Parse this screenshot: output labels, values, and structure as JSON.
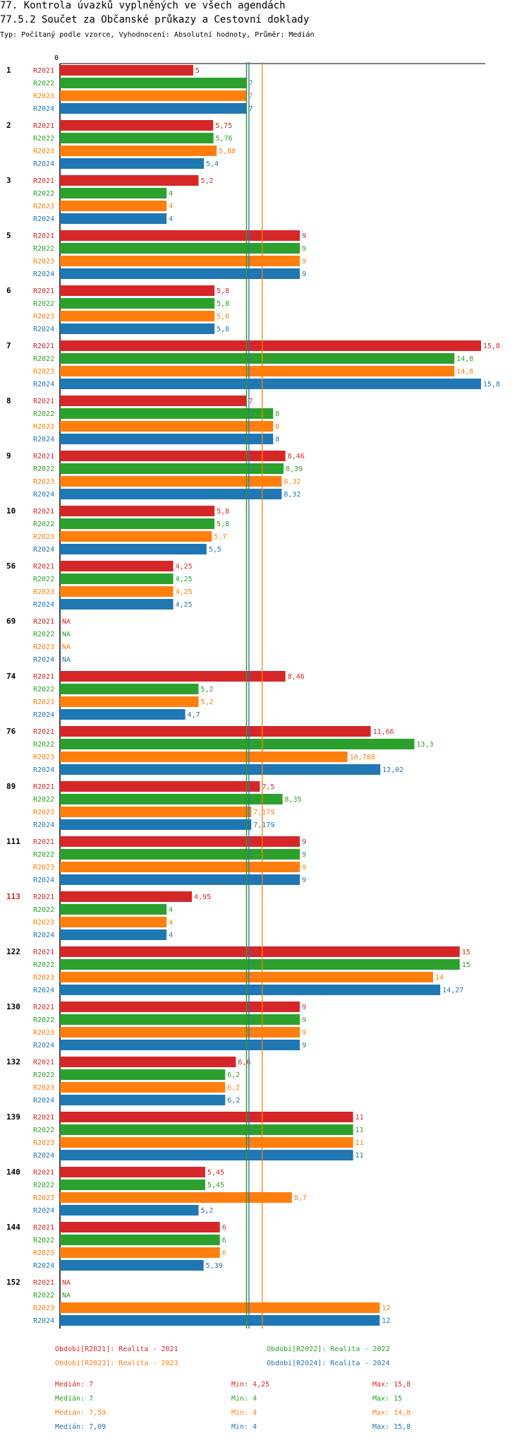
{
  "header": {
    "title": "77. Kontrola úvazků vyplněných ve všech agendách",
    "subtitle": "77.5.2 Součet za Občanské průkazy a Cestovní doklady",
    "description": "Typ: Počítaný podle vzorce, Vyhodnocení: Absolutní hodnoty, Průměr: Medián"
  },
  "colors": {
    "R2021": "#d62728",
    "R2022": "#2ca02c",
    "R2023": "#ff7f0e",
    "R2024": "#1f77b4",
    "highlight": "#d62728"
  },
  "chart_data": {
    "type": "bar",
    "orientation": "horizontal",
    "xlim": [
      0,
      15.8
    ],
    "x_tick_labels": [
      "0"
    ],
    "series_names": [
      "R2021",
      "R2022",
      "R2023",
      "R2024"
    ],
    "median_lines": {
      "R2021": 7,
      "R2022": 7,
      "R2023": 7.59,
      "R2024": 7.09
    },
    "groups": [
      {
        "label": "1",
        "highlight": false,
        "values": [
          5,
          7,
          7,
          7
        ],
        "labels": [
          "5",
          "7",
          "7",
          "7"
        ]
      },
      {
        "label": "2",
        "highlight": false,
        "values": [
          5.75,
          5.76,
          5.88,
          5.4
        ],
        "labels": [
          "5,75",
          "5,76",
          "5,88",
          "5,4"
        ]
      },
      {
        "label": "3",
        "highlight": false,
        "values": [
          5.2,
          4,
          4,
          4
        ],
        "labels": [
          "5,2",
          "4",
          "4",
          "4"
        ]
      },
      {
        "label": "5",
        "highlight": false,
        "values": [
          9,
          9,
          9,
          9
        ],
        "labels": [
          "9",
          "9",
          "9",
          "9"
        ]
      },
      {
        "label": "6",
        "highlight": false,
        "values": [
          5.8,
          5.8,
          5.8,
          5.8
        ],
        "labels": [
          "5,8",
          "5,8",
          "5,8",
          "5,8"
        ]
      },
      {
        "label": "7",
        "highlight": false,
        "values": [
          15.8,
          14.8,
          14.8,
          15.8
        ],
        "labels": [
          "15,8",
          "14,8",
          "14,8",
          "15,8"
        ]
      },
      {
        "label": "8",
        "highlight": false,
        "values": [
          7,
          8,
          8,
          8
        ],
        "labels": [
          "7",
          "8",
          "8",
          "8"
        ]
      },
      {
        "label": "9",
        "highlight": false,
        "values": [
          8.46,
          8.39,
          8.32,
          8.32
        ],
        "labels": [
          "8,46",
          "8,39",
          "8,32",
          "8,32"
        ]
      },
      {
        "label": "10",
        "highlight": false,
        "values": [
          5.8,
          5.8,
          5.7,
          5.5
        ],
        "labels": [
          "5,8",
          "5,8",
          "5,7",
          "5,5"
        ]
      },
      {
        "label": "56",
        "highlight": false,
        "values": [
          4.25,
          4.25,
          4.25,
          4.25
        ],
        "labels": [
          "4,25",
          "4,25",
          "4,25",
          "4,25"
        ]
      },
      {
        "label": "69",
        "highlight": false,
        "values": [
          null,
          null,
          null,
          null
        ],
        "labels": [
          "NA",
          "NA",
          "NA",
          "NA"
        ]
      },
      {
        "label": "74",
        "highlight": false,
        "values": [
          8.46,
          5.2,
          5.2,
          4.7
        ],
        "labels": [
          "8,46",
          "5,2",
          "5,2",
          "4,7"
        ]
      },
      {
        "label": "76",
        "highlight": false,
        "values": [
          11.66,
          13.3,
          10.788,
          12.02
        ],
        "labels": [
          "11,66",
          "13,3",
          "10,788",
          "12,02"
        ]
      },
      {
        "label": "89",
        "highlight": false,
        "values": [
          7.5,
          8.35,
          7.179,
          7.179
        ],
        "labels": [
          "7,5",
          "8,35",
          "7,179",
          "7,179"
        ]
      },
      {
        "label": "111",
        "highlight": false,
        "values": [
          9,
          9,
          9,
          9
        ],
        "labels": [
          "9",
          "9",
          "9",
          "9"
        ]
      },
      {
        "label": "113",
        "highlight": true,
        "values": [
          4.95,
          4,
          4,
          4
        ],
        "labels": [
          "4,95",
          "4",
          "4",
          "4"
        ]
      },
      {
        "label": "122",
        "highlight": false,
        "values": [
          15,
          15,
          14,
          14.27
        ],
        "labels": [
          "15",
          "15",
          "14",
          "14,27"
        ]
      },
      {
        "label": "130",
        "highlight": false,
        "values": [
          9,
          9,
          9,
          9
        ],
        "labels": [
          "9",
          "9",
          "9",
          "9"
        ]
      },
      {
        "label": "132",
        "highlight": false,
        "values": [
          6.6,
          6.2,
          6.2,
          6.2
        ],
        "labels": [
          "6,6",
          "6,2",
          "6,2",
          "6,2"
        ]
      },
      {
        "label": "139",
        "highlight": false,
        "values": [
          11,
          11,
          11,
          11
        ],
        "labels": [
          "11",
          "11",
          "11",
          "11"
        ]
      },
      {
        "label": "140",
        "highlight": false,
        "values": [
          5.45,
          5.45,
          8.7,
          5.2
        ],
        "labels": [
          "5,45",
          "5,45",
          "8,7",
          "5,2"
        ]
      },
      {
        "label": "144",
        "highlight": false,
        "values": [
          6,
          6,
          6,
          5.39
        ],
        "labels": [
          "6",
          "6",
          "6",
          "5,39"
        ]
      },
      {
        "label": "152",
        "highlight": false,
        "values": [
          null,
          null,
          12,
          12
        ],
        "labels": [
          "NA",
          "NA",
          "12",
          "12"
        ]
      }
    ]
  },
  "legend": [
    {
      "series": "R2021",
      "text": "Období[R2021]: Realita - 2021"
    },
    {
      "series": "R2022",
      "text": "Období[R2022]: Realita - 2022"
    },
    {
      "series": "R2023",
      "text": "Období[R2023]: Realita - 2023"
    },
    {
      "series": "R2024",
      "text": "Období[R2024]: Realita - 2024"
    }
  ],
  "stats": [
    {
      "series": "R2021",
      "median": "Medián: 7",
      "min": "Min: 4,25",
      "max": "Max: 15,8"
    },
    {
      "series": "R2022",
      "median": "Medián: 7",
      "min": "Min: 4",
      "max": "Max: 15"
    },
    {
      "series": "R2023",
      "median": "Medián: 7,59",
      "min": "Min: 4",
      "max": "Max: 14,8"
    },
    {
      "series": "R2024",
      "median": "Medián: 7,09",
      "min": "Min: 4",
      "max": "Max: 15,8"
    }
  ]
}
